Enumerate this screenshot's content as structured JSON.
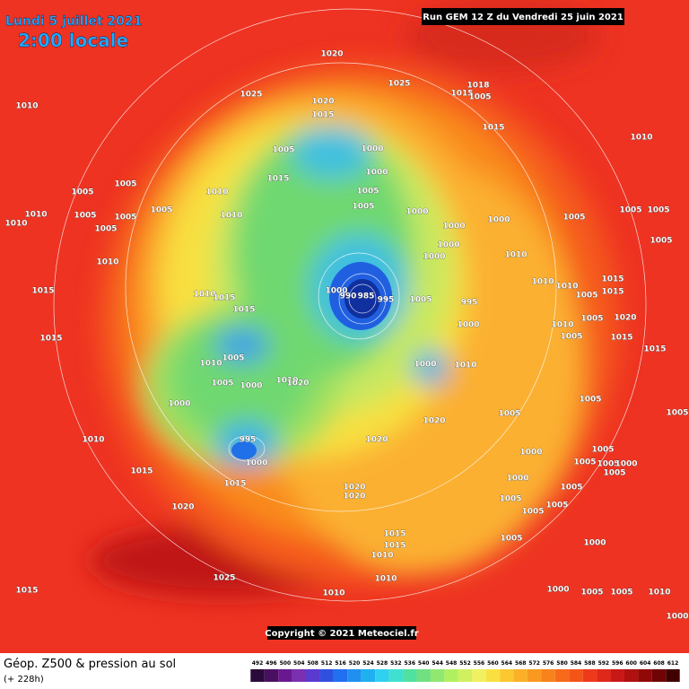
{
  "header": {
    "date": "Lundi 5 juillet 2021",
    "time": "2:00 locale",
    "run": "Run GEM 12 Z du Vendredi 25 juin 2021"
  },
  "copyright": "Copyright © 2021 Meteociel.fr",
  "footer": {
    "title": "Géop. Z500 & pression au sol",
    "lead": "(+ 228h)"
  },
  "colorbar": {
    "values": [
      492,
      496,
      500,
      504,
      508,
      512,
      516,
      520,
      524,
      528,
      532,
      536,
      540,
      544,
      548,
      552,
      556,
      560,
      564,
      568,
      572,
      576,
      580,
      584,
      588,
      592,
      596,
      600,
      604,
      608,
      612
    ],
    "colors": [
      "#2a0a3a",
      "#4a1060",
      "#6a1890",
      "#7a30b0",
      "#5a3ad0",
      "#3050e0",
      "#2070f0",
      "#2090f0",
      "#20b0f0",
      "#30d0f0",
      "#40e0d0",
      "#50e0a0",
      "#70e080",
      "#90e870",
      "#b0f060",
      "#d0f060",
      "#f0f060",
      "#f8e040",
      "#fbc830",
      "#fbb028",
      "#f99a20",
      "#f8821c",
      "#f66a1a",
      "#f45418",
      "#ee3a1a",
      "#e02818",
      "#c81818",
      "#b01010",
      "#900808",
      "#700404",
      "#400000"
    ]
  },
  "pressure_labels": [
    "1020",
    "1025",
    "1025",
    "1018",
    "1015",
    "1005",
    "1020",
    "1015",
    "1015",
    "1010",
    "1005",
    "1000",
    "1010",
    "1000",
    "1015",
    "1010",
    "1005",
    "1005",
    "1005",
    "1005",
    "1000",
    "1005",
    "1010",
    "1010",
    "1010",
    "1005",
    "1005",
    "1005",
    "1000",
    "1000",
    "1005",
    "1005",
    "1005",
    "1005",
    "1000",
    "1010",
    "1000",
    "1010",
    "1015",
    "1010",
    "1015",
    "1015",
    "1000",
    "990",
    "985",
    "995",
    "1005",
    "995",
    "1010",
    "1010",
    "1005",
    "1015",
    "1015",
    "1000",
    "1010",
    "1005",
    "1020",
    "1015",
    "1005",
    "1015",
    "1015",
    "1005",
    "1010",
    "1000",
    "1010",
    "1005",
    "1000",
    "1010",
    "1020",
    "1005",
    "1000",
    "1020",
    "1005",
    "1005",
    "1010",
    "995",
    "1020",
    "1000",
    "1000",
    "1005",
    "1005",
    "1005",
    "1000",
    "1005",
    "1015",
    "1000",
    "1005",
    "1015",
    "1020",
    "1020",
    "1005",
    "1005",
    "1005",
    "1020",
    "1015",
    "1005",
    "1000",
    "1015",
    "1010",
    "1025",
    "1010",
    "1015",
    "1010",
    "1000",
    "1005",
    "1005",
    "1010",
    "1000"
  ]
}
